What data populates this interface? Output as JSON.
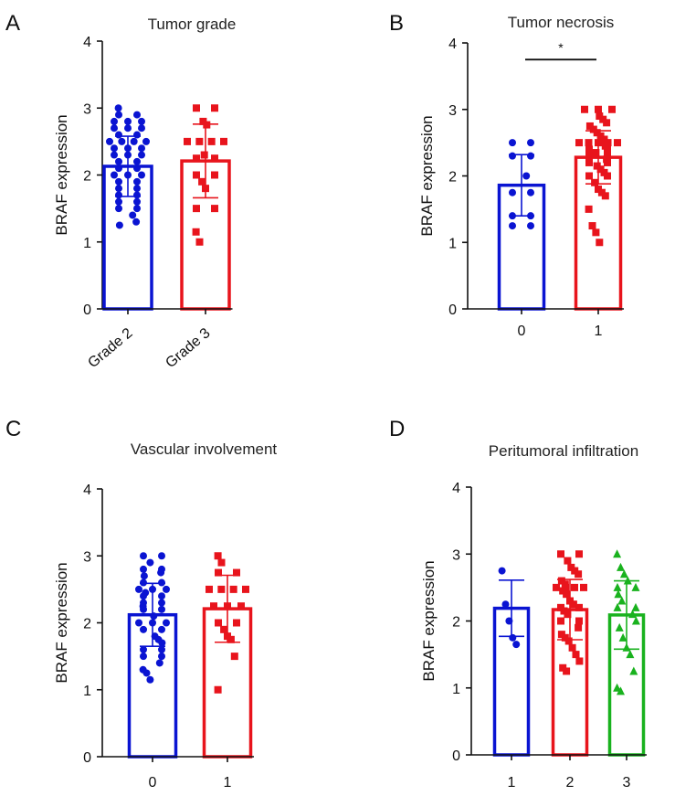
{
  "figure": {
    "colors": {
      "blue": "#0a14d2",
      "red": "#e8141c",
      "green": "#19b21e",
      "axis": "#111111"
    }
  },
  "chart_data": [
    {
      "panel": "A",
      "type": "bar",
      "title": "Tumor grade",
      "xlabel": "",
      "ylabel": "BRAF expression",
      "ylim": [
        0,
        4
      ],
      "yticks": [
        0,
        1,
        2,
        3,
        4
      ],
      "categories": [
        "Grade 2",
        "Grade 3"
      ],
      "series": [
        {
          "name": "Grade 2",
          "color": "blue",
          "marker": "circle",
          "mean": 2.13,
          "sd": 0.45,
          "points": [
            3.0,
            2.9,
            2.9,
            2.8,
            2.8,
            2.8,
            2.7,
            2.7,
            2.7,
            2.6,
            2.6,
            2.5,
            2.5,
            2.5,
            2.5,
            2.4,
            2.4,
            2.4,
            2.3,
            2.3,
            2.3,
            2.2,
            2.2,
            2.1,
            2.1,
            2.0,
            2.0,
            2.0,
            1.9,
            1.9,
            1.8,
            1.8,
            1.7,
            1.7,
            1.6,
            1.6,
            1.5,
            1.5,
            1.4,
            1.3,
            1.25
          ]
        },
        {
          "name": "Grade 3",
          "color": "red",
          "marker": "square",
          "mean": 2.21,
          "sd": 0.55,
          "points": [
            3.0,
            3.0,
            2.8,
            2.75,
            2.5,
            2.5,
            2.5,
            2.5,
            2.3,
            2.25,
            2.25,
            2.0,
            2.0,
            1.9,
            1.8,
            1.5,
            1.5,
            1.15,
            1.0
          ]
        }
      ],
      "annotations": []
    },
    {
      "panel": "B",
      "type": "bar",
      "title": "Tumor necrosis",
      "xlabel": "",
      "ylabel": "BRAF expression",
      "ylim": [
        0,
        4
      ],
      "yticks": [
        0,
        1,
        2,
        3,
        4
      ],
      "categories": [
        "0",
        "1"
      ],
      "series": [
        {
          "name": "0",
          "color": "blue",
          "marker": "circle",
          "mean": 1.86,
          "sd": 0.46,
          "points": [
            2.5,
            2.5,
            2.3,
            2.3,
            2.0,
            1.75,
            1.75,
            1.4,
            1.4,
            1.25,
            1.25
          ]
        },
        {
          "name": "1",
          "color": "red",
          "marker": "square",
          "mean": 2.28,
          "sd": 0.4,
          "points": [
            3.0,
            3.0,
            3.0,
            2.9,
            2.85,
            2.8,
            2.75,
            2.7,
            2.65,
            2.6,
            2.55,
            2.5,
            2.5,
            2.5,
            2.5,
            2.5,
            2.45,
            2.4,
            2.4,
            2.35,
            2.3,
            2.3,
            2.25,
            2.2,
            2.2,
            2.15,
            2.1,
            2.05,
            2.0,
            2.0,
            1.9,
            1.8,
            1.75,
            1.7,
            1.5,
            1.25,
            1.15,
            1.0
          ]
        }
      ],
      "annotations": [
        {
          "text": "*",
          "between": [
            0,
            1
          ],
          "y": 3.75
        }
      ]
    },
    {
      "panel": "C",
      "type": "bar",
      "title": "Vascular involvement",
      "xlabel": "",
      "ylabel": "BRAF expression",
      "ylim": [
        0,
        4
      ],
      "yticks": [
        0,
        1,
        2,
        3,
        4
      ],
      "categories": [
        "0",
        "1"
      ],
      "series": [
        {
          "name": "0",
          "color": "blue",
          "marker": "circle",
          "mean": 2.12,
          "sd": 0.47,
          "points": [
            3.0,
            3.0,
            2.9,
            2.8,
            2.8,
            2.75,
            2.7,
            2.6,
            2.6,
            2.5,
            2.5,
            2.5,
            2.45,
            2.4,
            2.4,
            2.3,
            2.3,
            2.25,
            2.2,
            2.2,
            2.1,
            2.0,
            2.0,
            2.0,
            1.9,
            1.9,
            1.8,
            1.75,
            1.7,
            1.6,
            1.6,
            1.5,
            1.5,
            1.4,
            1.3,
            1.25,
            1.15
          ]
        },
        {
          "name": "1",
          "color": "red",
          "marker": "square",
          "mean": 2.21,
          "sd": 0.5,
          "points": [
            3.0,
            2.9,
            2.75,
            2.75,
            2.5,
            2.5,
            2.5,
            2.5,
            2.25,
            2.25,
            2.25,
            2.0,
            2.0,
            1.9,
            1.8,
            1.75,
            1.5,
            1.0
          ]
        }
      ],
      "annotations": []
    },
    {
      "panel": "D",
      "type": "bar",
      "title": "Peritumoral infiltration",
      "xlabel": "",
      "ylabel": "BRAF expression",
      "ylim": [
        0,
        4
      ],
      "yticks": [
        0,
        1,
        2,
        3,
        4
      ],
      "categories": [
        "1",
        "2",
        "3"
      ],
      "series": [
        {
          "name": "1",
          "color": "blue",
          "marker": "circle",
          "mean": 2.19,
          "sd": 0.42,
          "points": [
            2.75,
            2.25,
            2.0,
            1.75,
            1.65
          ]
        },
        {
          "name": "2",
          "color": "red",
          "marker": "square",
          "mean": 2.17,
          "sd": 0.45,
          "points": [
            3.0,
            3.0,
            2.9,
            2.8,
            2.75,
            2.7,
            2.6,
            2.55,
            2.5,
            2.5,
            2.5,
            2.5,
            2.45,
            2.4,
            2.3,
            2.25,
            2.2,
            2.2,
            2.15,
            2.1,
            2.0,
            2.0,
            1.9,
            1.8,
            1.75,
            1.7,
            1.6,
            1.5,
            1.4,
            1.3,
            1.25
          ]
        },
        {
          "name": "3",
          "color": "green",
          "marker": "triangle",
          "mean": 2.09,
          "sd": 0.51,
          "points": [
            3.0,
            2.8,
            2.7,
            2.6,
            2.5,
            2.5,
            2.4,
            2.3,
            2.2,
            2.2,
            2.1,
            2.0,
            1.9,
            1.75,
            1.6,
            1.5,
            1.25,
            1.0,
            0.95
          ]
        }
      ],
      "annotations": []
    }
  ],
  "panels": [
    {
      "letter": "A"
    },
    {
      "letter": "B"
    },
    {
      "letter": "C"
    },
    {
      "letter": "D"
    }
  ]
}
